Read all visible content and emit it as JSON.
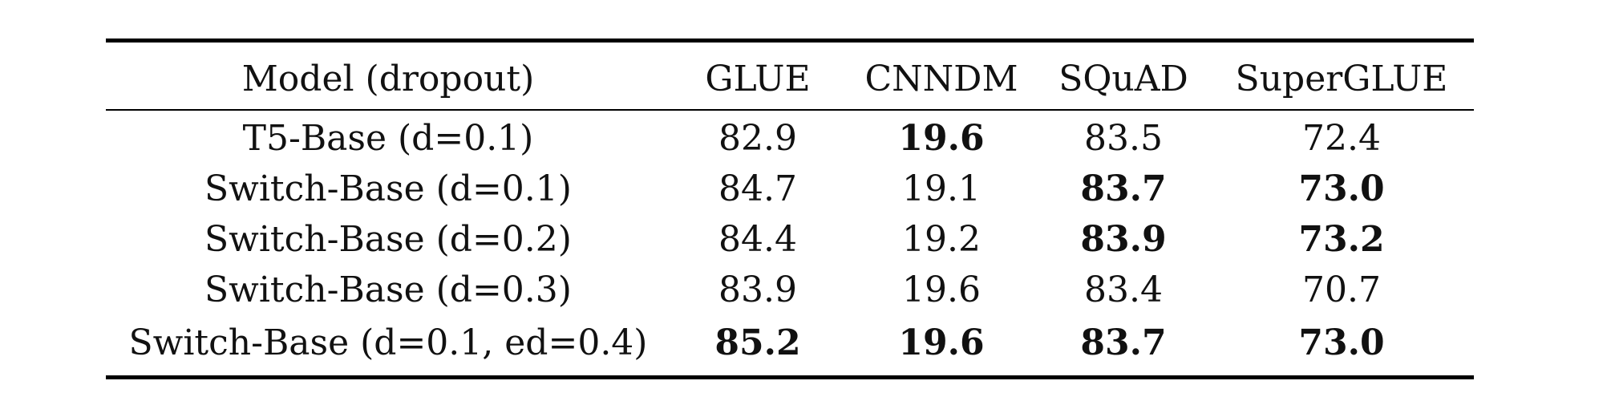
{
  "table": {
    "headers": [
      "Model (dropout)",
      "GLUE",
      "CNNDM",
      "SQuAD",
      "SuperGLUE"
    ],
    "rows": [
      {
        "model": "T5-Base (d=0.1)",
        "glue": "82.9",
        "cnndm": "19.6",
        "squad": "83.5",
        "superglue": "72.4",
        "bold": {
          "glue": false,
          "cnndm": true,
          "squad": false,
          "superglue": false
        }
      },
      {
        "model": "Switch-Base (d=0.1)",
        "glue": "84.7",
        "cnndm": "19.1",
        "squad": "83.7",
        "superglue": "73.0",
        "bold": {
          "glue": false,
          "cnndm": false,
          "squad": true,
          "superglue": true
        }
      },
      {
        "model": "Switch-Base (d=0.2)",
        "glue": "84.4",
        "cnndm": "19.2",
        "squad": "83.9",
        "superglue": "73.2",
        "bold": {
          "glue": false,
          "cnndm": false,
          "squad": true,
          "superglue": true
        }
      },
      {
        "model": "Switch-Base (d=0.3)",
        "glue": "83.9",
        "cnndm": "19.6",
        "squad": "83.4",
        "superglue": "70.7",
        "bold": {
          "glue": false,
          "cnndm": false,
          "squad": false,
          "superglue": false
        }
      },
      {
        "model": "Switch-Base (d=0.1, ed=0.4)",
        "glue": "85.2",
        "cnndm": "19.6",
        "squad": "83.7",
        "superglue": "73.0",
        "bold": {
          "glue": true,
          "cnndm": true,
          "squad": true,
          "superglue": true
        }
      }
    ]
  }
}
